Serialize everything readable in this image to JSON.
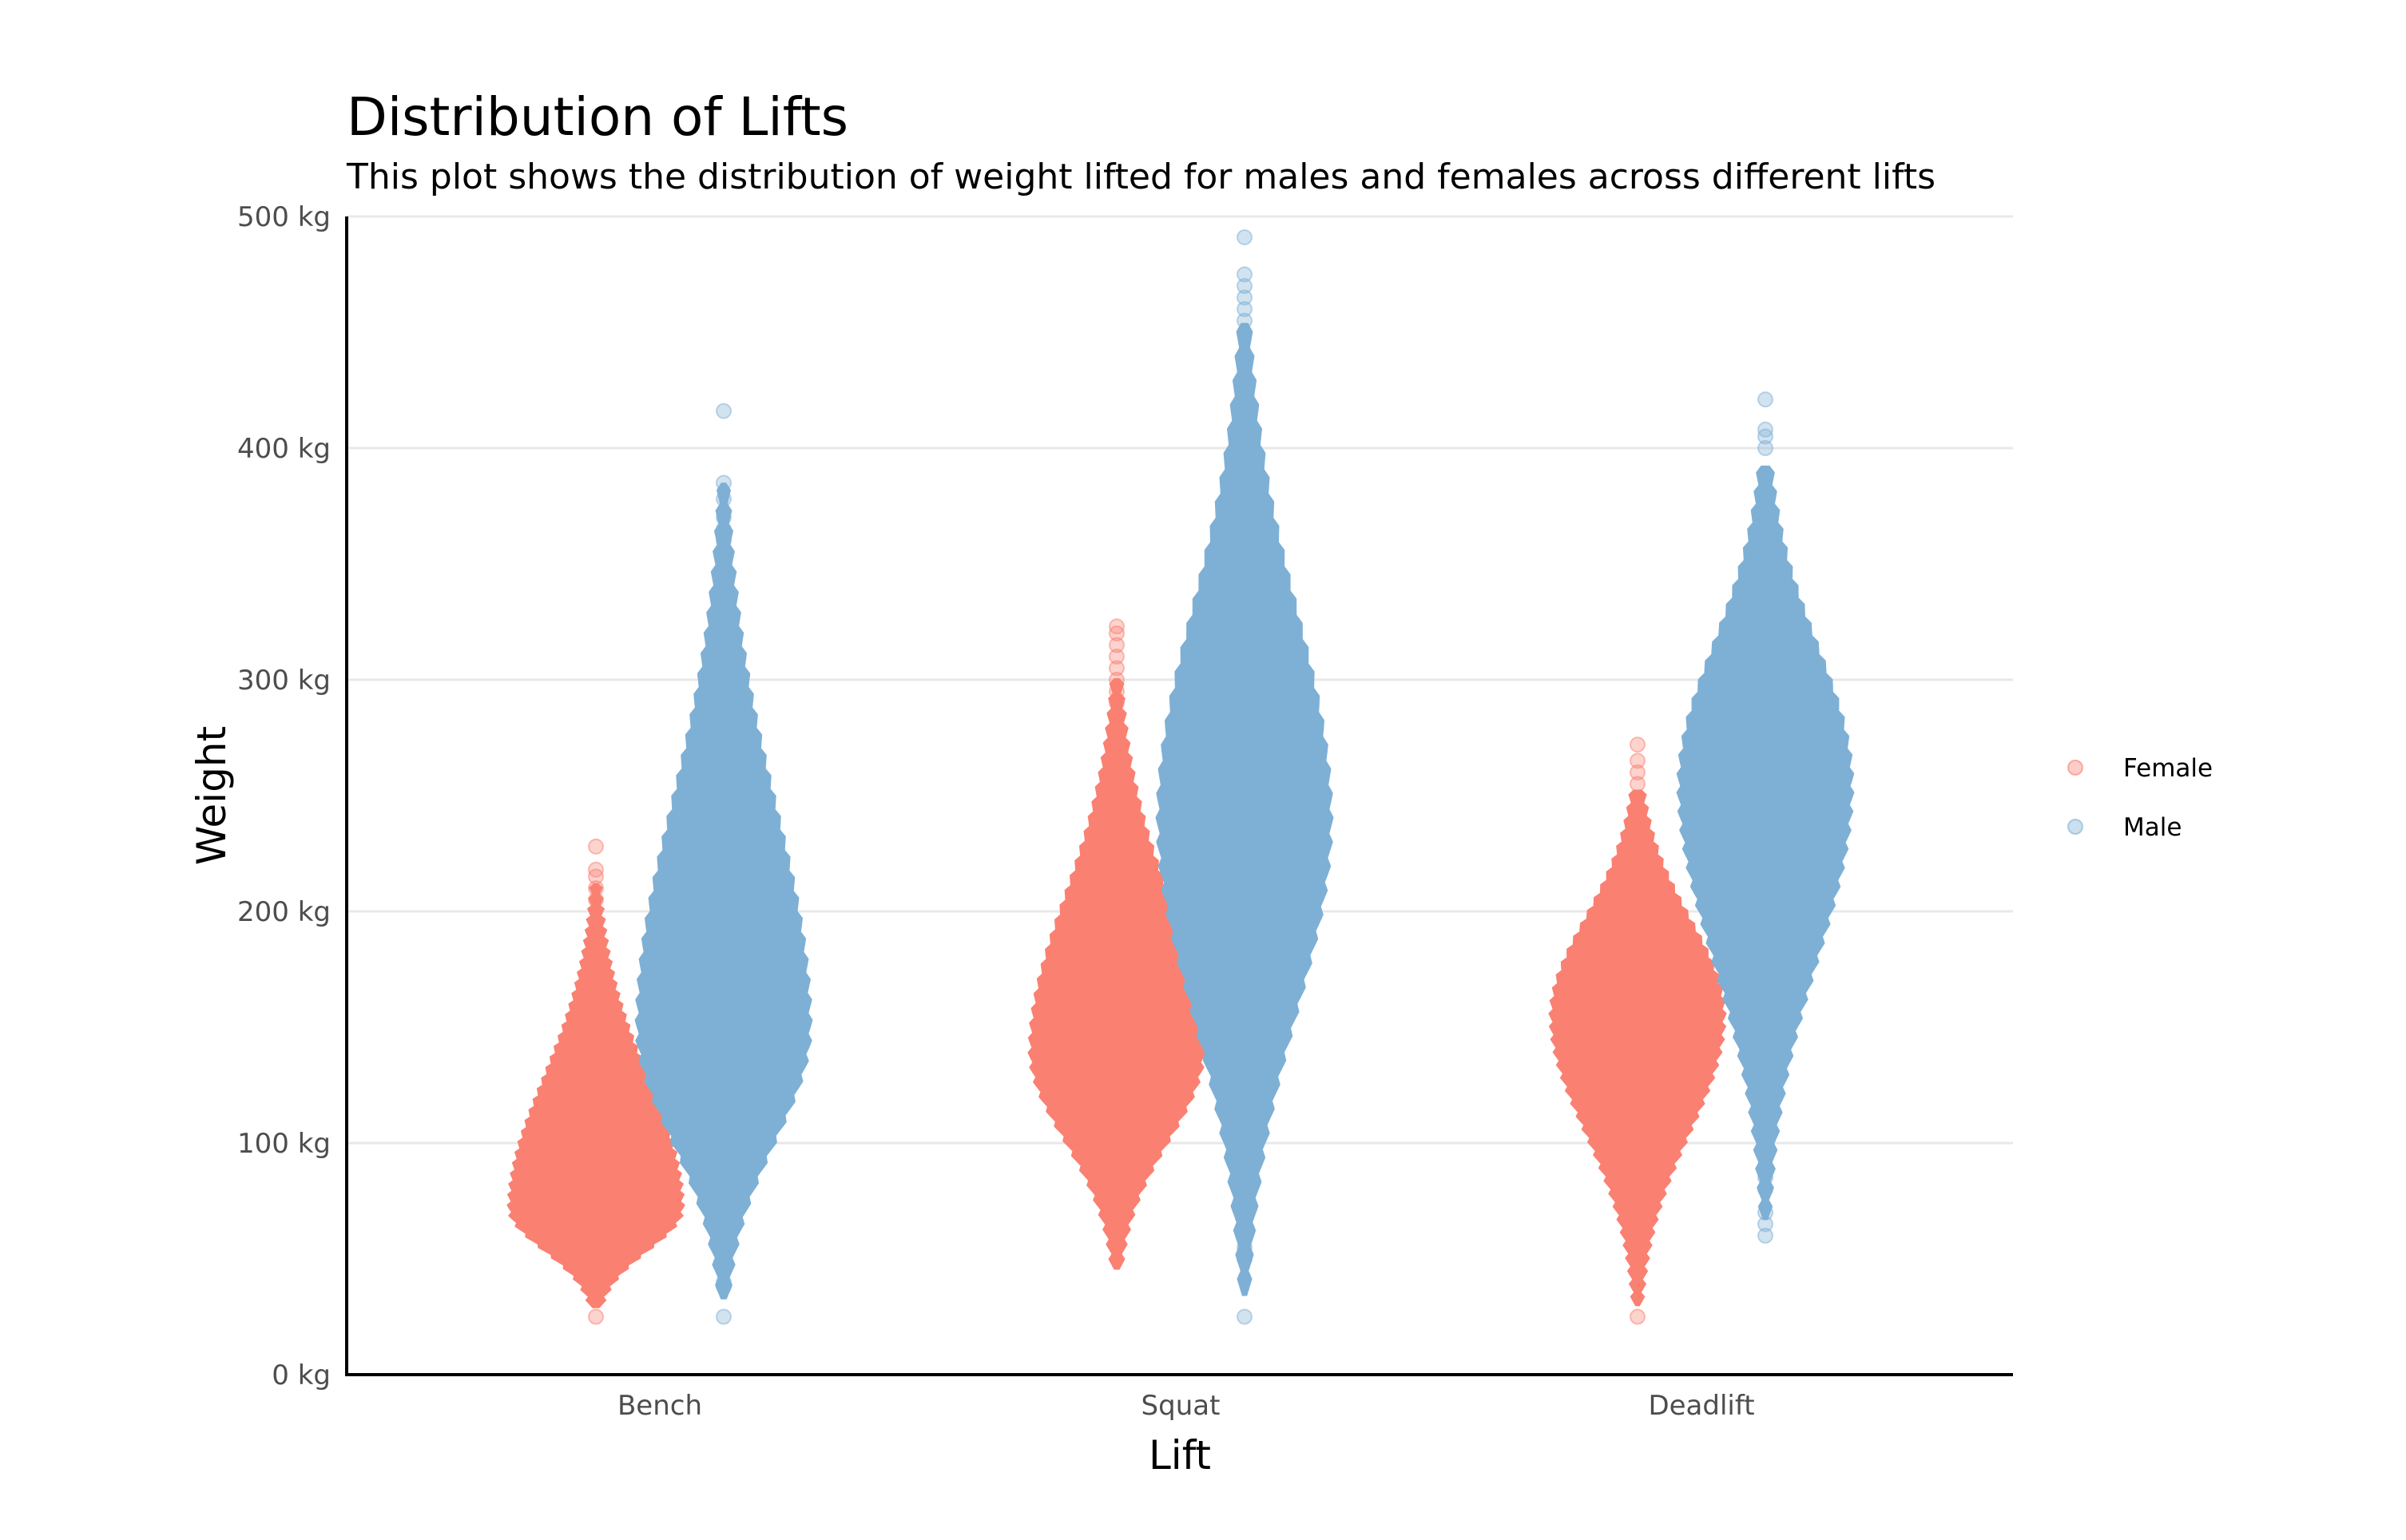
{
  "chart_data": {
    "type": "violin-beeswarm",
    "title": "Distribution of Lifts",
    "subtitle": "This plot shows the distribution of weight lifted for males and females across different lifts",
    "xlabel": "Lift",
    "ylabel": "Weight",
    "categories": [
      "Bench",
      "Squat",
      "Deadlift"
    ],
    "ylim": [
      0,
      500
    ],
    "yticks": [
      0,
      100,
      200,
      300,
      400,
      500
    ],
    "ytick_labels": [
      "0 kg",
      "100 kg",
      "200 kg",
      "300 kg",
      "400 kg",
      "500 kg"
    ],
    "grid": "horizontal",
    "legend_position": "right",
    "series": [
      {
        "name": "Female",
        "color": "#FA8072",
        "distributions": [
          {
            "category": "Bench",
            "min": 25,
            "max": 228,
            "peak": 72,
            "outliers": [
              25,
              205,
              210,
              215,
              218,
              228
            ]
          },
          {
            "category": "Squat",
            "min": 40,
            "max": 323,
            "peak": 140,
            "outliers": [
              280,
              285,
              290,
              295,
              300,
              305,
              310,
              315,
              320,
              323
            ]
          },
          {
            "category": "Deadlift",
            "min": 25,
            "max": 272,
            "peak": 155,
            "outliers": [
              25,
              50,
              55,
              60,
              65,
              255,
              260,
              265,
              272
            ]
          }
        ]
      },
      {
        "name": "Male",
        "color": "#7EB0D5",
        "distributions": [
          {
            "category": "Bench",
            "min": 25,
            "max": 416,
            "peak": 150,
            "outliers": [
              25,
              38,
              40,
              360,
              365,
              370,
              378,
              385,
              416
            ]
          },
          {
            "category": "Squat",
            "min": 25,
            "max": 491,
            "peak": 240,
            "outliers": [
              25,
              50,
              55,
              60,
              455,
              460,
              465,
              470,
              475,
              491
            ]
          },
          {
            "category": "Deadlift",
            "min": 60,
            "max": 421,
            "peak": 255,
            "outliers": [
              60,
              65,
              70,
              80,
              85,
              90,
              95,
              100,
              400,
              405,
              408,
              421
            ]
          }
        ]
      }
    ]
  }
}
